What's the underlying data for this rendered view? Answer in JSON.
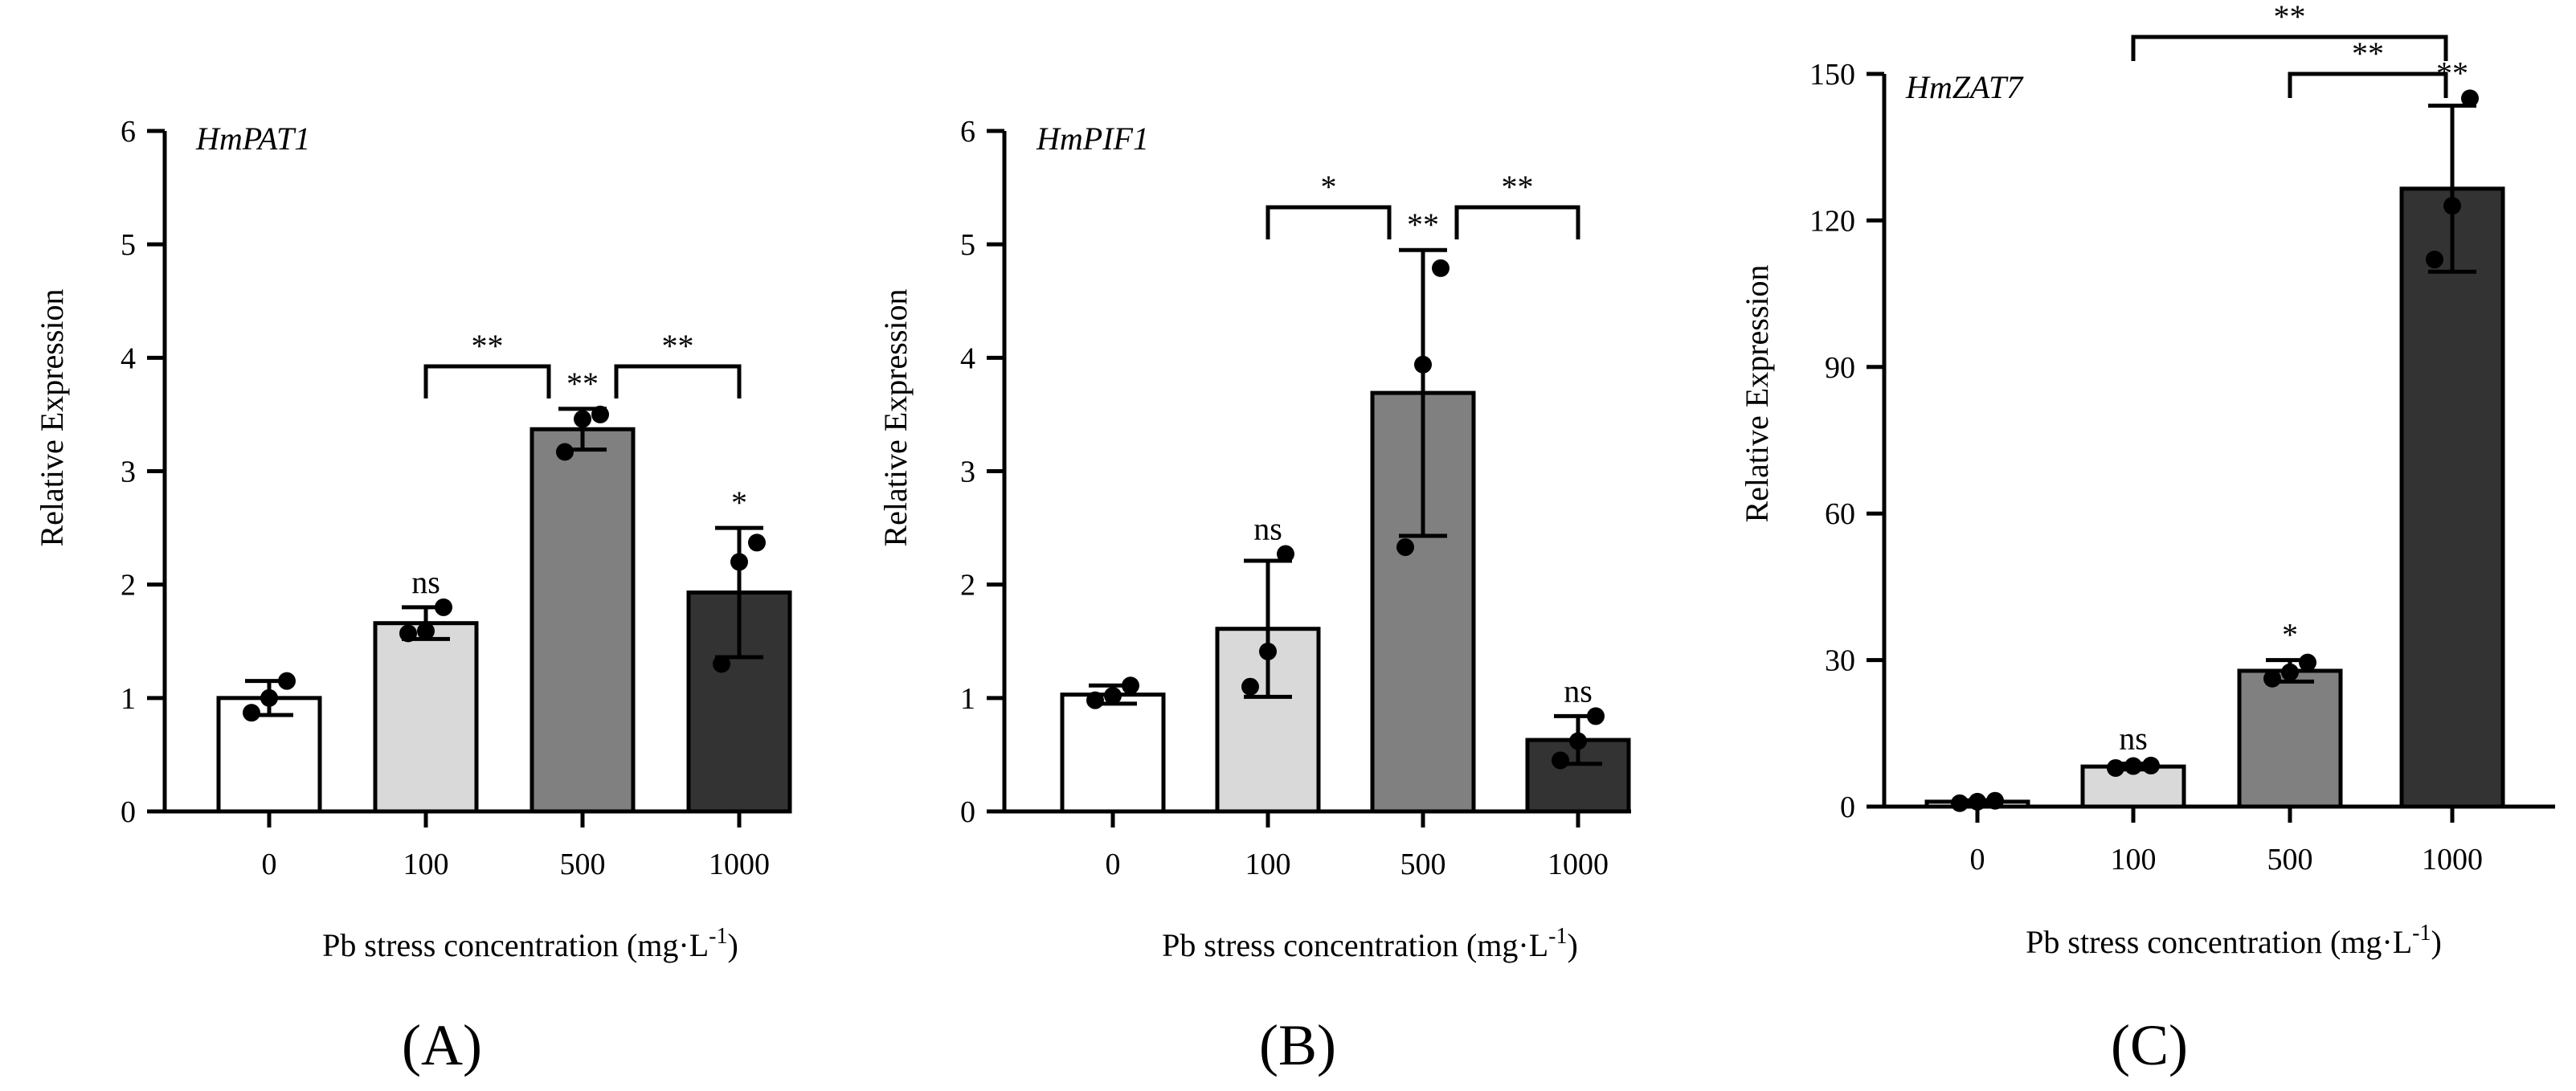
{
  "chart_data": [
    {
      "type": "bar",
      "panel_label": "(A)",
      "gene": "HmPAT1",
      "categories": [
        "0",
        "100",
        "500",
        "1000"
      ],
      "values": [
        1.0,
        1.66,
        3.37,
        1.93
      ],
      "errors": [
        0.15,
        0.14,
        0.18,
        0.57
      ],
      "points": [
        [
          0.87,
          1.0,
          1.15
        ],
        [
          1.57,
          1.59,
          1.8
        ],
        [
          3.17,
          3.46,
          3.5
        ],
        [
          1.3,
          2.2,
          2.37
        ]
      ],
      "fills": [
        "#ffffff",
        "#d9d9d9",
        "#808080",
        "#333333"
      ],
      "significance": [
        "",
        "ns",
        "**",
        "*"
      ],
      "brackets": [
        {
          "from": 1,
          "to": 2,
          "label": "**"
        },
        {
          "from": 2,
          "to": 3,
          "label": "**"
        }
      ],
      "ylabel": "Relative Expression",
      "xlabel": "Pb stress concentration (mg·L",
      "xlabel_sup": "-1",
      "xlabel_tail": ")",
      "ylim": [
        0,
        6
      ],
      "yticks": [
        "0",
        "1",
        "2",
        "3",
        "4",
        "5",
        "6"
      ]
    },
    {
      "type": "bar",
      "panel_label": "(B)",
      "gene": "HmPIF1",
      "categories": [
        "0",
        "100",
        "500",
        "1000"
      ],
      "values": [
        1.03,
        1.61,
        3.69,
        0.63
      ],
      "errors": [
        0.08,
        0.6,
        1.26,
        0.21
      ],
      "points": [
        [
          0.98,
          1.02,
          1.11
        ],
        [
          1.1,
          1.41,
          2.27
        ],
        [
          2.33,
          3.94,
          4.79
        ],
        [
          0.45,
          0.62,
          0.84
        ]
      ],
      "fills": [
        "#ffffff",
        "#d9d9d9",
        "#808080",
        "#333333"
      ],
      "significance": [
        "",
        "ns",
        "**",
        "ns"
      ],
      "brackets": [
        {
          "from": 1,
          "to": 2,
          "label": "*"
        },
        {
          "from": 2,
          "to": 3,
          "label": "**"
        }
      ],
      "ylabel": "Relative Expression",
      "xlabel": "Pb stress concentration (mg·L",
      "xlabel_sup": "-1",
      "xlabel_tail": ")",
      "ylim": [
        0,
        6
      ],
      "yticks": [
        "0",
        "1",
        "2",
        "3",
        "4",
        "5",
        "6"
      ]
    },
    {
      "type": "bar",
      "panel_label": "(C)",
      "gene": "HmZAT7",
      "categories": [
        "0",
        "100",
        "500",
        "1000"
      ],
      "values": [
        1.0,
        8.2,
        27.8,
        126.5
      ],
      "errors": [
        0.3,
        0.6,
        2.2,
        17.0
      ],
      "points": [
        [
          0.7,
          1.0,
          1.2
        ],
        [
          7.9,
          8.3,
          8.4
        ],
        [
          26.2,
          27.5,
          29.5
        ],
        [
          112.0,
          123.0,
          145.0
        ]
      ],
      "fills": [
        "#ffffff",
        "#d9d9d9",
        "#808080",
        "#333333"
      ],
      "significance": [
        "",
        "ns",
        "*",
        "**"
      ],
      "brackets": [
        {
          "from": 1,
          "to": 3,
          "label": "**",
          "level": 2
        },
        {
          "from": 2,
          "to": 3,
          "label": "**",
          "level": 1
        }
      ],
      "ylabel": "Relative Expression",
      "xlabel": "Pb stress concentration (mg·L",
      "xlabel_sup": "-1",
      "xlabel_tail": ")",
      "ylim": [
        0,
        150
      ],
      "yticks": [
        "0",
        "30",
        "60",
        "90",
        "120",
        "150"
      ]
    }
  ]
}
